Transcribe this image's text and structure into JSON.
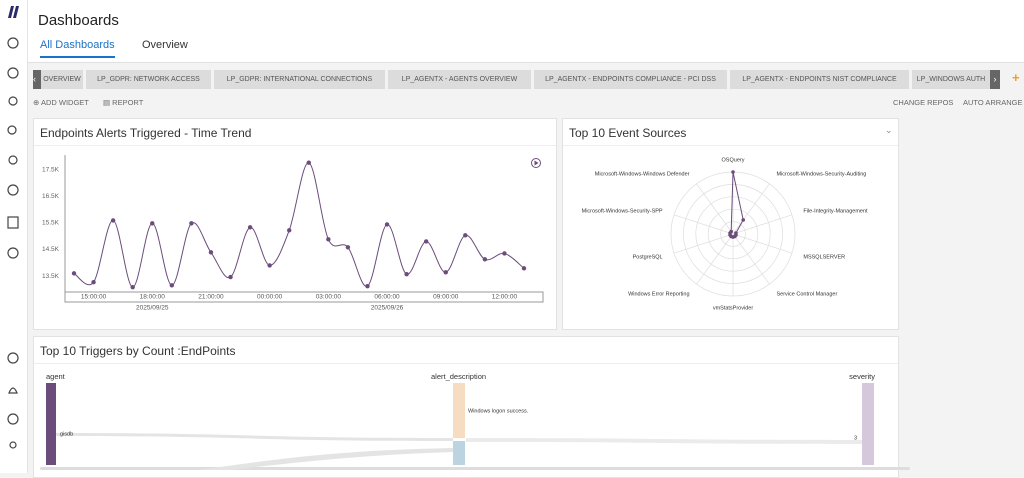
{
  "header": {
    "title": "Dashboards",
    "tabs": [
      "All Dashboards",
      "Overview"
    ]
  },
  "dashboard_tabs": [
    "OVERVIEW",
    "LP_GDPR: NETWORK ACCESS",
    "LP_GDPR: INTERNATIONAL CONNECTIONS",
    "LP_AGENTX - AGENTS OVERVIEW",
    "LP_AGENTX - ENDPOINTS COMPLIANCE - PCI DSS",
    "LP_AGENTX - ENDPOINTS NIST COMPLIANCE",
    "LP_WINDOWS AUTH"
  ],
  "toolbar": {
    "left": [
      "ADD WIDGET",
      "REPORT"
    ],
    "right": [
      "CHANGE REPOS",
      "AUTO ARRANGE"
    ]
  },
  "chart_data": [
    {
      "type": "line",
      "title": "Endpoints Alerts Triggered - Time Trend",
      "categories": [
        null,
        "15:00:00",
        null,
        null,
        "18:00:00",
        null,
        null,
        "21:00:00",
        null,
        null,
        "00:00:00",
        null,
        null,
        "03:00:00",
        null,
        null,
        "06:00:00",
        null,
        null,
        "09:00:00",
        null,
        null,
        "12:00:00",
        null
      ],
      "date_labels": [
        {
          "text": "2025/09/25",
          "category": 4
        },
        {
          "text": "2025/09/26",
          "category": 16
        }
      ],
      "series": [
        {
          "color": "#6b4c7a",
          "values": [
            13600,
            13270,
            15590,
            13080,
            15480,
            13150,
            15480,
            14390,
            13460,
            15330,
            13900,
            15220,
            17760,
            14880,
            14580,
            13120,
            15440,
            13570,
            14800,
            13640,
            15030,
            14130,
            14350,
            13790
          ]
        }
      ],
      "ylim": [
        12900,
        18050
      ],
      "yticks": [
        {
          "value": 13500,
          "label": "13.5K"
        },
        {
          "value": 14500,
          "label": "14.5K"
        },
        {
          "value": 15500,
          "label": "15.5K"
        },
        {
          "value": 16500,
          "label": "16.5K"
        },
        {
          "value": 17500,
          "label": "17.5K"
        }
      ],
      "grid": false
    },
    {
      "type": "radar",
      "title": "Top 10 Event Sources",
      "categories": [
        "OSQuery",
        "Microsoft-Windows-Security-Auditing",
        "File-Integrity-Management",
        "MSSQLSERVER",
        "Service Control Manager",
        "vmStatsProvider",
        "Windows Error Reporting",
        "PostgreSQL",
        "Microsoft-Windows-Security-SPP",
        "Microsoft-Windows-Windows Defender"
      ],
      "series": [
        {
          "color": "#6b4c7a",
          "values": [
            100,
            28,
            5,
            5,
            5,
            5,
            5,
            5,
            5,
            5
          ]
        }
      ],
      "rlim": [
        0,
        100
      ]
    },
    {
      "type": "sankey",
      "title": "Top 10 Triggers by Count :EndPoints",
      "columns": [
        "agent",
        "alert_description",
        "severity"
      ],
      "nodes": [
        {
          "column": 0,
          "label": "gisdb",
          "color": "#6b4c7a"
        },
        {
          "column": 1,
          "label": "Windows logon success.",
          "color": "#f6dcc0"
        },
        {
          "column": 1,
          "label": null,
          "color": "#bcd4e2"
        },
        {
          "column": 2,
          "label": "3",
          "color": "#d5c8dc"
        }
      ]
    }
  ]
}
